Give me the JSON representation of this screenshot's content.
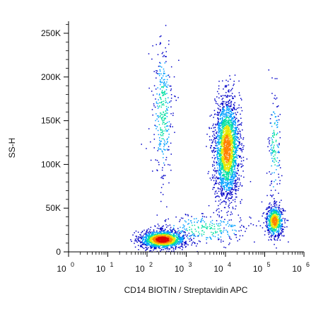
{
  "chart_data": {
    "type": "scatter",
    "title": "",
    "xlabel": "CD14 BIOTIN / Streptavidin APC",
    "ylabel": "SS-H",
    "x_scale": "log",
    "xlim": [
      1,
      1000000
    ],
    "ylim": [
      0,
      262144
    ],
    "x_ticks": [
      {
        "base": "10",
        "exp": "0",
        "value": 1
      },
      {
        "base": "10",
        "exp": "1",
        "value": 10
      },
      {
        "base": "10",
        "exp": "2",
        "value": 100
      },
      {
        "base": "10",
        "exp": "3",
        "value": 1000
      },
      {
        "base": "10",
        "exp": "4",
        "value": 10000
      },
      {
        "base": "10",
        "exp": "5",
        "value": 100000
      },
      {
        "base": "10",
        "exp": "6",
        "value": 1000000
      }
    ],
    "y_ticks": [
      {
        "label": "0",
        "value": 0
      },
      {
        "label": "50K",
        "value": 50000
      },
      {
        "label": "100K",
        "value": 100000
      },
      {
        "label": "150K",
        "value": 150000
      },
      {
        "label": "200K",
        "value": 200000
      },
      {
        "label": "250K",
        "value": 250000
      }
    ],
    "grid": false,
    "density_colormap": [
      "#0000c8",
      "#00a0ff",
      "#00e0a0",
      "#e8e800",
      "#ff8000",
      "#e00000"
    ],
    "populations": [
      {
        "x_center": 250,
        "y_center": 14000,
        "x_spread_log10": 0.28,
        "y_spread": 5000,
        "events": 1500,
        "peak_density": "high"
      },
      {
        "x_center": 250,
        "y_center": 160000,
        "x_spread_log10": 0.13,
        "y_spread": 42000,
        "events": 330,
        "peak_density": "low"
      },
      {
        "x_center": 11000,
        "y_center": 118000,
        "x_spread_log10": 0.16,
        "y_spread": 28000,
        "events": 2300,
        "peak_density": "medium"
      },
      {
        "x_center": 180000,
        "y_center": 35000,
        "x_spread_log10": 0.11,
        "y_spread": 9000,
        "events": 650,
        "peak_density": "medium"
      },
      {
        "x_center": 180000,
        "y_center": 120000,
        "x_spread_log10": 0.08,
        "y_spread": 35000,
        "events": 150,
        "peak_density": "low"
      },
      {
        "x_center": 3000,
        "y_center": 26000,
        "x_spread_log10": 0.6,
        "y_spread": 9000,
        "events": 280,
        "peak_density": "low"
      }
    ]
  }
}
